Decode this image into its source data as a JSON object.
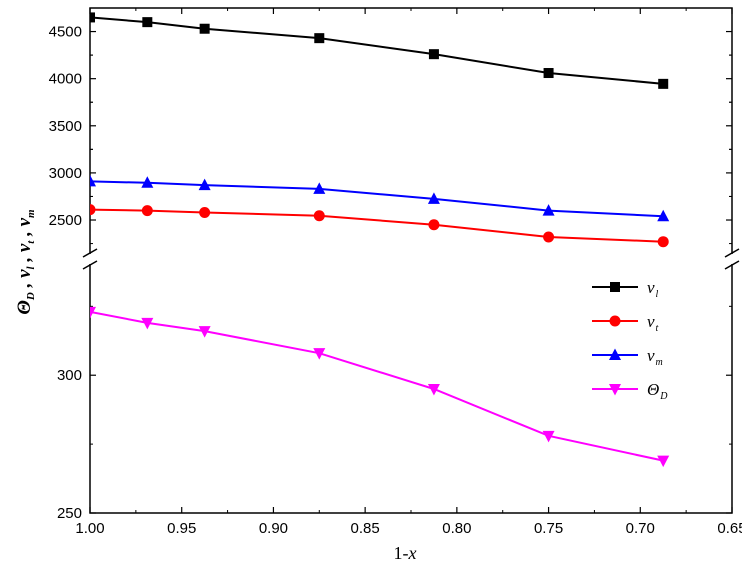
{
  "chart_data": {
    "type": "line",
    "xlabel": {
      "prefix": "1-",
      "var": "x"
    },
    "ylabel": [
      {
        "main": "Θ",
        "sub": "D"
      },
      {
        "main": "v",
        "sub": "l"
      },
      {
        "main": "v",
        "sub": "t"
      },
      {
        "main": "v",
        "sub": "m"
      }
    ],
    "ylabel_separator": " , ",
    "x": [
      1.0,
      0.96875,
      0.9375,
      0.875,
      0.8125,
      0.75,
      0.6875
    ],
    "xlim": [
      1.0,
      0.65
    ],
    "x_ticks": [
      "1.00",
      "0.95",
      "0.90",
      "0.85",
      "0.80",
      "0.75",
      "0.70",
      "0.65"
    ],
    "y_axis_broken": true,
    "upper_panel": {
      "ylim": [
        2150,
        4750
      ],
      "y_ticks": [
        "2500",
        "3000",
        "3500",
        "4000",
        "4500"
      ]
    },
    "lower_panel": {
      "ylim": [
        250,
        340
      ],
      "y_ticks": [
        "250",
        "300"
      ]
    },
    "series": [
      {
        "name_main": "v",
        "name_sub": "l",
        "panel": "upper",
        "color": "#000000",
        "marker": "square",
        "values": [
          4650,
          4600,
          4530,
          4430,
          4260,
          4060,
          3945
        ]
      },
      {
        "name_main": "v",
        "name_sub": "t",
        "panel": "upper",
        "color": "#ff0000",
        "marker": "circle",
        "values": [
          2610,
          2600,
          2580,
          2545,
          2450,
          2320,
          2270
        ]
      },
      {
        "name_main": "v",
        "name_sub": "m",
        "panel": "upper",
        "color": "#0000ff",
        "marker": "triangle-up",
        "values": [
          2910,
          2895,
          2870,
          2830,
          2725,
          2600,
          2540
        ]
      },
      {
        "name_main": "Θ",
        "name_sub": "D",
        "panel": "lower",
        "color": "#ff00ff",
        "marker": "triangle-down",
        "values": [
          323,
          319,
          316,
          308,
          295,
          278,
          269
        ]
      }
    ],
    "legend": {
      "position": "right"
    },
    "grid": false
  }
}
